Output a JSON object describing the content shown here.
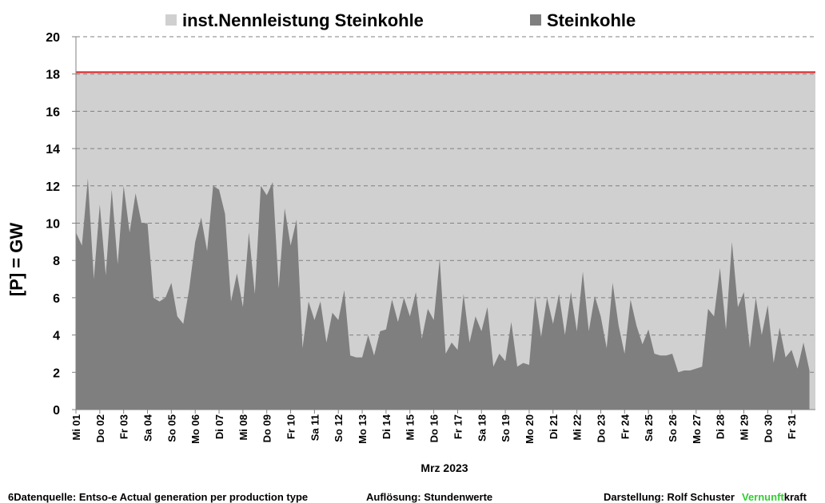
{
  "chart_data": {
    "type": "area",
    "ylabel": "[P]  = GW",
    "xlabel": "Mrz 2023",
    "ylim": [
      0,
      20
    ],
    "yticks": [
      0,
      2,
      4,
      6,
      8,
      10,
      12,
      14,
      16,
      18,
      20
    ],
    "grid": true,
    "capacity_line_color": "#e02020",
    "categories": [
      "Mi 01",
      null,
      null,
      null,
      "Do 02",
      null,
      null,
      null,
      "Fr 03",
      null,
      null,
      null,
      "Sa 04",
      null,
      null,
      null,
      "So 05",
      null,
      null,
      null,
      "Mo 06",
      null,
      null,
      null,
      "Di 07",
      null,
      null,
      null,
      "Mi 08",
      null,
      null,
      null,
      "Do 09",
      null,
      null,
      null,
      "Fr 10",
      null,
      null,
      null,
      "Sa 11",
      null,
      null,
      null,
      "So 12",
      null,
      null,
      null,
      "Mo 13",
      null,
      null,
      null,
      "Di 14",
      null,
      null,
      null,
      "Mi 15",
      null,
      null,
      null,
      "Do 16",
      null,
      null,
      null,
      "Fr 17",
      null,
      null,
      null,
      "Sa 18",
      null,
      null,
      null,
      "So 19",
      null,
      null,
      null,
      "Mo 20",
      null,
      null,
      null,
      "Di 21",
      null,
      null,
      null,
      "Mi 22",
      null,
      null,
      null,
      "Do 23",
      null,
      null,
      null,
      "Fr 24",
      null,
      null,
      null,
      "Sa 25",
      null,
      null,
      null,
      "So 26",
      null,
      null,
      null,
      "Mo 27",
      null,
      null,
      null,
      "Di 28",
      null,
      null,
      null,
      "Mi 29",
      null,
      null,
      null,
      "Do 30",
      null,
      null,
      null,
      "Fr 31",
      null,
      null,
      null
    ],
    "series": [
      {
        "name": "inst.Nennleistung Steinkohle",
        "color": "#d0d0d0",
        "values": [
          18.1,
          18.1,
          18.1,
          18.1,
          18.1,
          18.1,
          18.1,
          18.1,
          18.1,
          18.1,
          18.1,
          18.1,
          18.1,
          18.1,
          18.1,
          18.1,
          18.1,
          18.1,
          18.1,
          18.1,
          18.1,
          18.1,
          18.1,
          18.1,
          18.1,
          18.1,
          18.1,
          18.1,
          18.1,
          18.1,
          18.1,
          18.1,
          18.1,
          18.1,
          18.1,
          18.1,
          18.1,
          18.1,
          18.1,
          18.1,
          18.1,
          18.1,
          18.1,
          18.1,
          18.1,
          18.1,
          18.1,
          18.1,
          18.1,
          18.1,
          18.1,
          18.1,
          18.1,
          18.1,
          18.1,
          18.1,
          18.1,
          18.1,
          18.1,
          18.1,
          18.1,
          18.1,
          18.1,
          18.1,
          18.1,
          18.1,
          18.1,
          18.1,
          18.1,
          18.1,
          18.1,
          18.1,
          18.1,
          18.1,
          18.1,
          18.1,
          18.1,
          18.1,
          18.1,
          18.1,
          18.1,
          18.1,
          18.1,
          18.1,
          18.1,
          18.1,
          18.1,
          18.1,
          18.1,
          18.1,
          18.1,
          18.1,
          18.1,
          18.1,
          18.1,
          18.1,
          18.1,
          18.1,
          18.1,
          18.1,
          18.1,
          18.1,
          18.1,
          18.1,
          18.1,
          18.1,
          18.1,
          18.1,
          18.1,
          18.1,
          18.1,
          18.1,
          18.1,
          18.1,
          18.1,
          18.1,
          18.1,
          18.1,
          18.1,
          18.1,
          18.1,
          18.1,
          18.1,
          18.1
        ]
      },
      {
        "name": "Steinkohle",
        "color": "#7f7f7f",
        "values": [
          9.5,
          8.8,
          12.4,
          7.0,
          11.0,
          7.2,
          11.8,
          7.8,
          12.0,
          9.5,
          11.6,
          10.0,
          10.0,
          6.0,
          5.8,
          6.0,
          6.8,
          5.0,
          4.6,
          6.5,
          9.0,
          10.3,
          8.5,
          12.0,
          11.8,
          10.5,
          5.8,
          7.3,
          5.5,
          9.5,
          6.2,
          12.0,
          11.5,
          12.2,
          6.5,
          10.8,
          8.8,
          10.2,
          3.3,
          5.8,
          4.8,
          5.8,
          3.6,
          5.2,
          4.8,
          6.4,
          2.9,
          2.8,
          2.8,
          4.0,
          2.9,
          4.2,
          4.3,
          5.9,
          4.7,
          6.0,
          5.0,
          6.3,
          3.8,
          5.4,
          4.8,
          8.1,
          3.0,
          3.6,
          3.2,
          6.2,
          3.6,
          5.0,
          4.2,
          5.5,
          2.3,
          3.0,
          2.6,
          4.7,
          2.3,
          2.5,
          2.4,
          6.1,
          3.9,
          6.0,
          4.6,
          6.2,
          4.0,
          6.3,
          4.2,
          7.4,
          4.2,
          6.1,
          5.0,
          3.3,
          6.8,
          4.5,
          3.0,
          5.9,
          4.5,
          3.5,
          4.3,
          3.0,
          2.9,
          2.9,
          3.0,
          2.0,
          2.1,
          2.1,
          2.2,
          2.3,
          5.4,
          5.0,
          7.6,
          4.3,
          9.0,
          5.5,
          6.3,
          3.3,
          6.0,
          4.0,
          5.6,
          2.5,
          4.4,
          2.8,
          3.2,
          2.2,
          3.6,
          2.1
        ]
      }
    ]
  },
  "footer": {
    "source": "6Datenquelle: Entso-e  Actual generation per production type",
    "resolution": "Auflösung:  Stundenwerte",
    "author": "Darstellung:  Rolf Schuster",
    "brand_green": "Vernunft",
    "brand_rest": "kraft"
  }
}
